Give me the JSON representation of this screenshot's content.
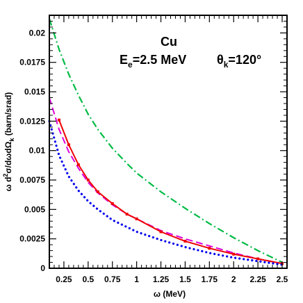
{
  "chart_data": {
    "type": "line",
    "title": "",
    "annotations": {
      "element": "Cu",
      "energy": "E",
      "energy_sub": "e",
      "energy_value": "=2.5 MeV",
      "angle": "θ",
      "angle_sub": "k",
      "angle_value": "=120°"
    },
    "xlabel": "ω  (MeV)",
    "ylabel": {
      "part1": "ω d",
      "sup": "2",
      "part2": "σ/dωdΩ",
      "sub": "k",
      "part3": "  (barn/srad)"
    },
    "xlim": [
      0.1,
      2.55
    ],
    "ylim": [
      0,
      0.0215
    ],
    "xticks": [
      0.25,
      0.5,
      0.75,
      1,
      1.25,
      1.5,
      1.75,
      2,
      2.25,
      2.5
    ],
    "xtick_labels": [
      "0.25",
      "0.5",
      "0.75",
      "1",
      "1.25",
      "1.5",
      "1.75",
      "2",
      "2.25",
      "2.5"
    ],
    "yticks": [
      0,
      0.0025,
      0.005,
      0.0075,
      0.01,
      0.0125,
      0.015,
      0.0175,
      0.02
    ],
    "ytick_labels": [
      "0",
      "0.0025",
      "0.005",
      "0.0075",
      "0.01",
      "0.0125",
      "0.015",
      "0.0175",
      "0.02"
    ],
    "grid": false,
    "legend": "none",
    "series": [
      {
        "style": "dash-dot",
        "color": "#00bb44",
        "x": [
          0.1,
          0.2,
          0.3,
          0.4,
          0.5,
          0.6,
          0.75,
          0.9,
          1.0,
          1.25,
          1.5,
          1.75,
          2.0,
          2.25,
          2.5
        ],
        "y": [
          0.0212,
          0.0186,
          0.0165,
          0.0147,
          0.0131,
          0.0118,
          0.0102,
          0.0089,
          0.0081,
          0.0065,
          0.0051,
          0.0038,
          0.0026,
          0.0015,
          0.0005
        ]
      },
      {
        "style": "dashed",
        "color": "#dd00dd",
        "x": [
          0.1,
          0.2,
          0.3,
          0.4,
          0.5,
          0.6,
          0.75,
          0.9,
          1.0,
          1.25,
          1.5,
          1.75,
          2.0,
          2.25,
          2.5
        ],
        "y": [
          0.0145,
          0.0118,
          0.0099,
          0.0085,
          0.0073,
          0.0064,
          0.0054,
          0.0046,
          0.0042,
          0.0032,
          0.0025,
          0.0019,
          0.0013,
          0.0008,
          0.0004
        ]
      },
      {
        "style": "solid-with-markers",
        "color": "#ee0000",
        "x": [
          0.2,
          0.3,
          0.4,
          0.5,
          0.6,
          0.75,
          0.9,
          1.0,
          1.25,
          1.5,
          1.75,
          2.0,
          2.25,
          2.5
        ],
        "y": [
          0.0126,
          0.0105,
          0.0088,
          0.0075,
          0.0065,
          0.0055,
          0.0046,
          0.0042,
          0.0031,
          0.0023,
          0.0017,
          0.0012,
          0.0008,
          0.0004
        ]
      },
      {
        "style": "dotted",
        "color": "#0000ee",
        "x": [
          0.1,
          0.2,
          0.3,
          0.4,
          0.5,
          0.6,
          0.75,
          0.9,
          1.0,
          1.25,
          1.5,
          1.75,
          2.0,
          2.25,
          2.5
        ],
        "y": [
          0.0125,
          0.0096,
          0.0078,
          0.0066,
          0.0057,
          0.005,
          0.0041,
          0.0035,
          0.0031,
          0.0024,
          0.0018,
          0.0013,
          0.0009,
          0.0006,
          0.0003
        ]
      }
    ]
  }
}
